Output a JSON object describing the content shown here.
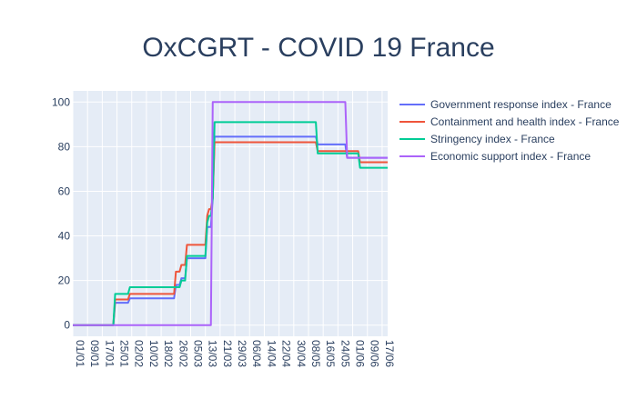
{
  "chart_data": {
    "type": "line",
    "title": "OxCGRT - COVID 19 France",
    "xlabel": "",
    "ylabel": "",
    "x_tick_labels": [
      "01/01",
      "09/01",
      "17/01",
      "25/01",
      "02/02",
      "10/02",
      "18/02",
      "26/02",
      "05/03",
      "13/03",
      "21/03",
      "29/03",
      "06/04",
      "14/04",
      "22/04",
      "30/04",
      "08/05",
      "16/05",
      "24/05",
      "01/06",
      "09/06",
      "17/06"
    ],
    "x_range_days": [
      0,
      171
    ],
    "ylim": [
      -5,
      105
    ],
    "y_ticks": [
      0,
      20,
      40,
      60,
      80,
      100
    ],
    "grid": true,
    "legend_position": "top-right",
    "series": [
      {
        "name": "Government response index - France",
        "color": "#636efa",
        "points": [
          [
            0,
            0
          ],
          [
            21,
            0
          ],
          [
            22,
            0
          ],
          [
            23,
            10
          ],
          [
            30,
            10
          ],
          [
            31,
            12
          ],
          [
            55,
            12
          ],
          [
            56,
            18
          ],
          [
            58,
            18
          ],
          [
            59,
            21
          ],
          [
            61,
            21
          ],
          [
            62,
            30
          ],
          [
            72,
            30
          ],
          [
            73,
            44
          ],
          [
            75,
            44
          ],
          [
            76,
            57
          ],
          [
            77,
            84.5
          ],
          [
            132,
            84.5
          ],
          [
            133,
            81
          ],
          [
            148,
            81
          ],
          [
            149,
            75
          ],
          [
            171,
            75
          ]
        ]
      },
      {
        "name": "Containment and health index - France",
        "color": "#ef553b",
        "points": [
          [
            0,
            0
          ],
          [
            21,
            0
          ],
          [
            22,
            0
          ],
          [
            23,
            11.5
          ],
          [
            30,
            11.5
          ],
          [
            31,
            14
          ],
          [
            55,
            14
          ],
          [
            56,
            24
          ],
          [
            58,
            24
          ],
          [
            59,
            27
          ],
          [
            61,
            27
          ],
          [
            62,
            36
          ],
          [
            72,
            36
          ],
          [
            73,
            49
          ],
          [
            74,
            52
          ],
          [
            75,
            52
          ],
          [
            76,
            57
          ],
          [
            77,
            82
          ],
          [
            132,
            82
          ],
          [
            133,
            78
          ],
          [
            155,
            78
          ],
          [
            156,
            73
          ],
          [
            171,
            73
          ]
        ]
      },
      {
        "name": "Stringency index - France",
        "color": "#00cc96",
        "points": [
          [
            0,
            0
          ],
          [
            21,
            0
          ],
          [
            22,
            0
          ],
          [
            23,
            14
          ],
          [
            30,
            14
          ],
          [
            31,
            17
          ],
          [
            57,
            17
          ],
          [
            58,
            17
          ],
          [
            59,
            20
          ],
          [
            61,
            20
          ],
          [
            62,
            31
          ],
          [
            72,
            31
          ],
          [
            73,
            46
          ],
          [
            74,
            49
          ],
          [
            75,
            49
          ],
          [
            76,
            57
          ],
          [
            77,
            91
          ],
          [
            132,
            91
          ],
          [
            133,
            77
          ],
          [
            155,
            77
          ],
          [
            156,
            70.5
          ],
          [
            171,
            70.5
          ]
        ]
      },
      {
        "name": "Economic support index - France",
        "color": "#ab63fa",
        "points": [
          [
            0,
            0
          ],
          [
            75,
            0
          ],
          [
            76,
            100
          ],
          [
            148,
            100
          ],
          [
            149,
            75
          ],
          [
            171,
            75
          ]
        ]
      }
    ]
  }
}
